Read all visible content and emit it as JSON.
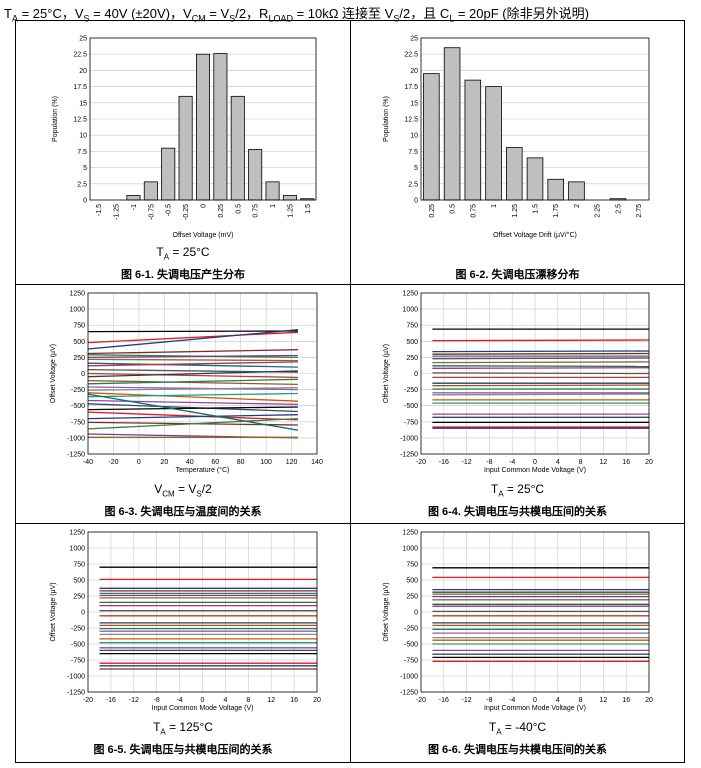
{
  "header": {
    "ta": "T",
    "ta_sub": "A",
    "ta_val": " = 25°C，V",
    "vs_sub": "S",
    "vs_val": " = 40V (±20V)，V",
    "vcm_sub": "CM",
    "vcm_val": " = V",
    "vs2_sub": "S",
    "vs2_val": "/2，R",
    "rload_sub": "LOAD",
    "rload_val": " = 10kΩ 连接至 V",
    "vs3_sub": "S",
    "vs3_val": "/2，且 C",
    "cl_sub": "L",
    "cl_val": " = 20pF (除非另外说明)"
  },
  "panels": [
    {
      "caption": "图 6-1. 失调电压产生分布",
      "cond_main": "T",
      "cond_sub": "A",
      "cond_tail": " = 25°C"
    },
    {
      "caption": "图 6-2. 失调电压漂移分布",
      "cond_main": "",
      "cond_sub": "",
      "cond_tail": ""
    },
    {
      "caption": "图 6-3. 失调电压与温度间的关系",
      "cond_main": "V",
      "cond_sub": "CM",
      "cond_tail": " = V",
      "cond_sub2": "S",
      "cond_tail2": "/2"
    },
    {
      "caption": "图 6-4. 失调电压与共模电压间的关系",
      "cond_main": "T",
      "cond_sub": "A",
      "cond_tail": " = 25°C"
    },
    {
      "caption": "图 6-5. 失调电压与共模电压间的关系",
      "cond_main": "T",
      "cond_sub": "A",
      "cond_tail": " = 125°C"
    },
    {
      "caption": "图 6-6. 失调电压与共模电压间的关系",
      "cond_main": "T",
      "cond_sub": "A",
      "cond_tail": " = -40°C"
    }
  ],
  "colors": {
    "bar_fill": "#bfbfbf",
    "bar_stroke": "#000000",
    "grid": "#c8c8c8",
    "palette": [
      "#000000",
      "#e41a1c",
      "#1f3c88",
      "#7b2d26",
      "#3a7d44",
      "#6b3fa0",
      "#8c6d1f",
      "#0e6e6e",
      "#b03060",
      "#555555",
      "#c0392b",
      "#2c3e50",
      "#a0522d",
      "#1e8449",
      "#9b59b6",
      "#7f8c8d",
      "#d35400",
      "#16a085",
      "#8e44ad",
      "#34495e"
    ]
  },
  "chart_data": [
    {
      "type": "bar",
      "categories": [
        "-1.5",
        "-1.25",
        "-1",
        "-0.75",
        "-0.5",
        "-0.25",
        "0",
        "0.25",
        "0.5",
        "0.75",
        "1",
        "1.25",
        "1.5"
      ],
      "values": [
        0,
        0,
        0.7,
        2.8,
        8.0,
        16.0,
        22.5,
        22.6,
        16.0,
        7.8,
        2.8,
        0.7,
        0.2
      ],
      "xlabel": "Offset Voltage (mV)",
      "ylabel": "Population (%)",
      "ylim": [
        0,
        25
      ],
      "yticks": [
        "0",
        "2.5",
        "5",
        "7.5",
        "10",
        "12.5",
        "15",
        "17.5",
        "20",
        "22.5",
        "25"
      ],
      "grid": true
    },
    {
      "type": "bar",
      "categories": [
        "0.25",
        "0.5",
        "0.75",
        "1",
        "1.25",
        "1.5",
        "1.75",
        "2",
        "2.25",
        "2.5",
        "2.75"
      ],
      "values": [
        19.5,
        23.5,
        18.5,
        17.5,
        8.1,
        6.5,
        3.2,
        2.8,
        0,
        0.2,
        0
      ],
      "xlabel": "Offset Voltage Drift (µV/°C)",
      "ylabel": "Population (%)",
      "ylim": [
        0,
        25
      ],
      "yticks": [
        "0",
        "2.5",
        "5",
        "7.5",
        "10",
        "12.5",
        "15",
        "17.5",
        "20",
        "22.5",
        "25"
      ],
      "grid": true
    },
    {
      "type": "line",
      "xlabel": "Temperature (°C)",
      "ylabel": "Offset Voltage (µV)",
      "xlim": [
        -40,
        140
      ],
      "ylim": [
        -1250,
        1250
      ],
      "xticks": [
        "-40",
        "-20",
        "0",
        "20",
        "40",
        "60",
        "80",
        "100",
        "120",
        "140"
      ],
      "yticks": [
        "-1250",
        "-1000",
        "-750",
        "-500",
        "-250",
        "0",
        "250",
        "500",
        "750",
        "1000",
        "1250"
      ],
      "x": [
        -40,
        125
      ],
      "series": [
        {
          "values": [
            650,
            660
          ]
        },
        {
          "values": [
            480,
            640
          ]
        },
        {
          "values": [
            380,
            680
          ]
        },
        {
          "values": [
            310,
            370
          ]
        },
        {
          "values": [
            290,
            250
          ]
        },
        {
          "values": [
            250,
            280
          ]
        },
        {
          "values": [
            220,
            200
          ]
        },
        {
          "values": [
            160,
            100
          ]
        },
        {
          "values": [
            120,
            180
          ]
        },
        {
          "values": [
            60,
            20
          ]
        },
        {
          "values": [
            0,
            -60
          ]
        },
        {
          "values": [
            -50,
            40
          ]
        },
        {
          "values": [
            -110,
            -170
          ]
        },
        {
          "values": [
            -160,
            -90
          ]
        },
        {
          "values": [
            -210,
            -250
          ]
        },
        {
          "values": [
            -260,
            -220
          ]
        },
        {
          "values": [
            -300,
            -430
          ]
        },
        {
          "values": [
            -360,
            -310
          ]
        },
        {
          "values": [
            -420,
            -480
          ]
        },
        {
          "values": [
            -470,
            -590
          ]
        },
        {
          "values": [
            -560,
            -520
          ]
        },
        {
          "values": [
            -600,
            -720
          ]
        },
        {
          "values": [
            -700,
            -640
          ]
        },
        {
          "values": [
            -760,
            -800
          ]
        },
        {
          "values": [
            -860,
            -700
          ]
        },
        {
          "values": [
            -940,
            -1000
          ]
        },
        {
          "values": [
            -990,
            -990
          ]
        },
        {
          "values": [
            -320,
            -880
          ]
        }
      ],
      "grid": true
    },
    {
      "type": "line",
      "xlabel": "Input Common Mode Voltage (V)",
      "ylabel": "Offset Voltage (µV)",
      "xlim": [
        -20,
        20
      ],
      "ylim": [
        -1250,
        1250
      ],
      "xticks": [
        "-20",
        "-16",
        "-12",
        "-8",
        "-4",
        "0",
        "4",
        "8",
        "12",
        "16",
        "20"
      ],
      "yticks": [
        "-1250",
        "-1000",
        "-750",
        "-500",
        "-250",
        "0",
        "250",
        "500",
        "750",
        "1000",
        "1250"
      ],
      "x": [
        -18,
        20
      ],
      "series": [
        {
          "values": [
            690,
            690
          ]
        },
        {
          "values": [
            510,
            520
          ]
        },
        {
          "values": [
            340,
            350
          ]
        },
        {
          "values": [
            300,
            310
          ]
        },
        {
          "values": [
            270,
            270
          ]
        },
        {
          "values": [
            230,
            240
          ]
        },
        {
          "values": [
            170,
            180
          ]
        },
        {
          "values": [
            120,
            110
          ]
        },
        {
          "values": [
            80,
            90
          ]
        },
        {
          "values": [
            10,
            0
          ]
        },
        {
          "values": [
            -60,
            -60
          ]
        },
        {
          "values": [
            -150,
            -150
          ]
        },
        {
          "values": [
            -190,
            -180
          ]
        },
        {
          "values": [
            -240,
            -240
          ]
        },
        {
          "values": [
            -300,
            -300
          ]
        },
        {
          "values": [
            -330,
            -320
          ]
        },
        {
          "values": [
            -410,
            -410
          ]
        },
        {
          "values": [
            -460,
            -460
          ]
        },
        {
          "values": [
            -630,
            -630
          ]
        },
        {
          "values": [
            -680,
            -680
          ]
        },
        {
          "values": [
            -760,
            -760
          ]
        },
        {
          "values": [
            -830,
            -830
          ]
        },
        {
          "values": [
            -850,
            -850
          ]
        }
      ],
      "grid": true
    },
    {
      "type": "line",
      "xlabel": "Input Common Mode Voltage (V)",
      "ylabel": "Offset Voltage (µV)",
      "xlim": [
        -20,
        20
      ],
      "ylim": [
        -1250,
        1250
      ],
      "xticks": [
        "-20",
        "-16",
        "-12",
        "-8",
        "-4",
        "0",
        "4",
        "8",
        "12",
        "16",
        "20"
      ],
      "yticks": [
        "-1250",
        "-1000",
        "-750",
        "-500",
        "-250",
        "0",
        "250",
        "500",
        "750",
        "1000",
        "1250"
      ],
      "x": [
        -18,
        20
      ],
      "series": [
        {
          "values": [
            700,
            700
          ]
        },
        {
          "values": [
            510,
            510
          ]
        },
        {
          "values": [
            370,
            370
          ]
        },
        {
          "values": [
            330,
            330
          ]
        },
        {
          "values": [
            290,
            290
          ]
        },
        {
          "values": [
            260,
            260
          ]
        },
        {
          "values": [
            220,
            220
          ]
        },
        {
          "values": [
            150,
            150
          ]
        },
        {
          "values": [
            100,
            100
          ]
        },
        {
          "values": [
            20,
            20
          ]
        },
        {
          "values": [
            -60,
            -60
          ]
        },
        {
          "values": [
            -170,
            -170
          ]
        },
        {
          "values": [
            -210,
            -210
          ]
        },
        {
          "values": [
            -260,
            -260
          ]
        },
        {
          "values": [
            -300,
            -300
          ]
        },
        {
          "values": [
            -350,
            -350
          ]
        },
        {
          "values": [
            -420,
            -420
          ]
        },
        {
          "values": [
            -480,
            -480
          ]
        },
        {
          "values": [
            -560,
            -560
          ]
        },
        {
          "values": [
            -600,
            -600
          ]
        },
        {
          "values": [
            -650,
            -650
          ]
        },
        {
          "values": [
            -800,
            -800
          ]
        },
        {
          "values": [
            -840,
            -840
          ]
        },
        {
          "values": [
            -890,
            -890
          ]
        }
      ],
      "grid": true
    },
    {
      "type": "line",
      "xlabel": "Input Common Mode Voltage (V)",
      "ylabel": "Offset Voltage (µV)",
      "xlim": [
        -20,
        20
      ],
      "ylim": [
        -1250,
        1250
      ],
      "xticks": [
        "-20",
        "-16",
        "-12",
        "-8",
        "-4",
        "0",
        "4",
        "8",
        "12",
        "16",
        "20"
      ],
      "yticks": [
        "-1250",
        "-1000",
        "-750",
        "-500",
        "-250",
        "0",
        "250",
        "500",
        "750",
        "1000",
        "1250"
      ],
      "x": [
        -18,
        20
      ],
      "series": [
        {
          "values": [
            690,
            690
          ]
        },
        {
          "values": [
            540,
            540
          ]
        },
        {
          "values": [
            350,
            350
          ]
        },
        {
          "values": [
            310,
            310
          ]
        },
        {
          "values": [
            280,
            280
          ]
        },
        {
          "values": [
            240,
            240
          ]
        },
        {
          "values": [
            190,
            190
          ]
        },
        {
          "values": [
            120,
            120
          ]
        },
        {
          "values": [
            90,
            90
          ]
        },
        {
          "values": [
            10,
            10
          ]
        },
        {
          "values": [
            -60,
            -60
          ]
        },
        {
          "values": [
            -170,
            -170
          ]
        },
        {
          "values": [
            -210,
            -210
          ]
        },
        {
          "values": [
            -270,
            -270
          ]
        },
        {
          "values": [
            -330,
            -330
          ]
        },
        {
          "values": [
            -400,
            -400
          ]
        },
        {
          "values": [
            -440,
            -440
          ]
        },
        {
          "values": [
            -500,
            -500
          ]
        },
        {
          "values": [
            -600,
            -600
          ]
        },
        {
          "values": [
            -660,
            -660
          ]
        },
        {
          "values": [
            -710,
            -710
          ]
        },
        {
          "values": [
            -770,
            -770
          ]
        }
      ],
      "grid": true
    }
  ]
}
